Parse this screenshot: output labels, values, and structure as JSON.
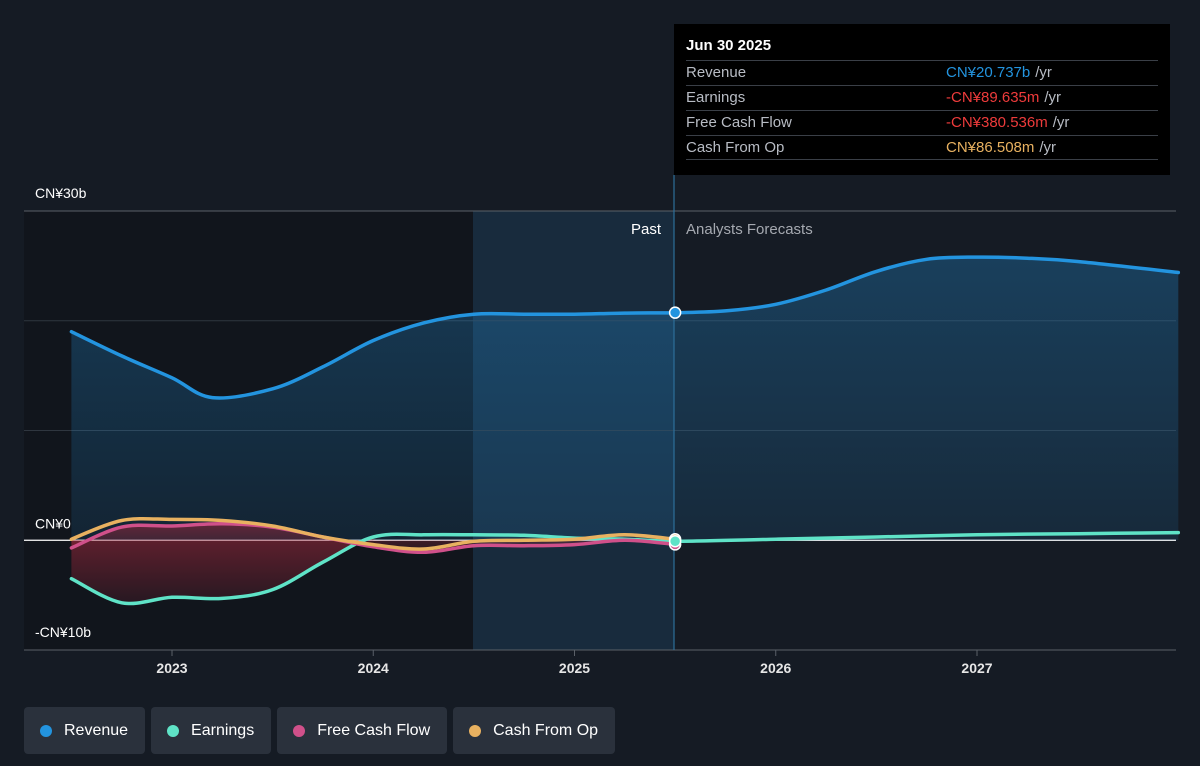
{
  "chart_data": {
    "type": "area",
    "x_ticks": [
      "2023",
      "2024",
      "2025",
      "2026",
      "2027"
    ],
    "y_ticks": [
      "CN¥30b",
      "CN¥0",
      "-CN¥10b"
    ],
    "ylim_billion": [
      -10,
      30
    ],
    "grid": true,
    "past_label": "Past",
    "forecast_label": "Analysts Forecasts",
    "series": [
      {
        "name": "Revenue",
        "color": "#2394df",
        "filled": true,
        "points": [
          [
            2022.5,
            19.0
          ],
          [
            2022.75,
            16.8
          ],
          [
            2023.0,
            14.8
          ],
          [
            2023.2,
            13.0
          ],
          [
            2023.5,
            13.8
          ],
          [
            2023.75,
            15.8
          ],
          [
            2024.0,
            18.2
          ],
          [
            2024.25,
            19.8
          ],
          [
            2024.5,
            20.6
          ],
          [
            2024.75,
            20.6
          ],
          [
            2025.0,
            20.6
          ],
          [
            2025.25,
            20.7
          ],
          [
            2025.5,
            20.737
          ],
          [
            2025.75,
            20.9
          ],
          [
            2026.0,
            21.5
          ],
          [
            2026.25,
            22.8
          ],
          [
            2026.5,
            24.5
          ],
          [
            2026.75,
            25.6
          ],
          [
            2027.0,
            25.8
          ],
          [
            2027.25,
            25.7
          ],
          [
            2027.5,
            25.4
          ],
          [
            2028.0,
            24.4
          ]
        ]
      },
      {
        "name": "Earnings",
        "color": "#5fe3c7",
        "filled": false,
        "points": [
          [
            2022.5,
            -3.5
          ],
          [
            2022.75,
            -5.7
          ],
          [
            2023.0,
            -5.2
          ],
          [
            2023.25,
            -5.3
          ],
          [
            2023.5,
            -4.5
          ],
          [
            2023.75,
            -2.0
          ],
          [
            2024.0,
            0.3
          ],
          [
            2024.25,
            0.5
          ],
          [
            2024.5,
            0.5
          ],
          [
            2024.75,
            0.45
          ],
          [
            2025.0,
            0.2
          ],
          [
            2025.25,
            0.1
          ],
          [
            2025.5,
            -0.0896
          ],
          [
            2026.0,
            0.1
          ],
          [
            2026.5,
            0.3
          ],
          [
            2027.0,
            0.5
          ],
          [
            2027.5,
            0.6
          ],
          [
            2028.0,
            0.7
          ]
        ]
      },
      {
        "name": "Free Cash Flow",
        "color": "#d0508a",
        "filled": true,
        "points": [
          [
            2022.5,
            -0.7
          ],
          [
            2022.75,
            1.2
          ],
          [
            2023.0,
            1.3
          ],
          [
            2023.25,
            1.5
          ],
          [
            2023.5,
            1.2
          ],
          [
            2023.75,
            0.3
          ],
          [
            2024.0,
            -0.6
          ],
          [
            2024.25,
            -1.1
          ],
          [
            2024.5,
            -0.5
          ],
          [
            2024.75,
            -0.5
          ],
          [
            2025.0,
            -0.4
          ],
          [
            2025.25,
            0.0
          ],
          [
            2025.5,
            -0.3805
          ]
        ]
      },
      {
        "name": "Cash From Op",
        "color": "#e8b160",
        "filled": false,
        "points": [
          [
            2022.5,
            0.1
          ],
          [
            2022.75,
            1.8
          ],
          [
            2023.0,
            1.9
          ],
          [
            2023.25,
            1.8
          ],
          [
            2023.5,
            1.3
          ],
          [
            2023.75,
            0.3
          ],
          [
            2024.0,
            -0.4
          ],
          [
            2024.25,
            -0.8
          ],
          [
            2024.5,
            -0.1
          ],
          [
            2024.75,
            0.0
          ],
          [
            2025.0,
            0.1
          ],
          [
            2025.25,
            0.5
          ],
          [
            2025.5,
            0.0865
          ]
        ]
      }
    ]
  },
  "tooltip": {
    "date": "Jun 30 2025",
    "rows": [
      {
        "name": "Revenue",
        "value": "CN¥20.737b",
        "unit": "/yr",
        "color": "#2394df"
      },
      {
        "name": "Earnings",
        "value": "-CN¥89.635m",
        "unit": "/yr",
        "color": "#ee3b3b"
      },
      {
        "name": "Free Cash Flow",
        "value": "-CN¥380.536m",
        "unit": "/yr",
        "color": "#ee3b3b"
      },
      {
        "name": "Cash From Op",
        "value": "CN¥86.508m",
        "unit": "/yr",
        "color": "#e8b160"
      }
    ]
  },
  "legend": [
    {
      "label": "Revenue",
      "color": "#2394df"
    },
    {
      "label": "Earnings",
      "color": "#5fe3c7"
    },
    {
      "label": "Free Cash Flow",
      "color": "#d0508a"
    },
    {
      "label": "Cash From Op",
      "color": "#e8b160"
    }
  ]
}
